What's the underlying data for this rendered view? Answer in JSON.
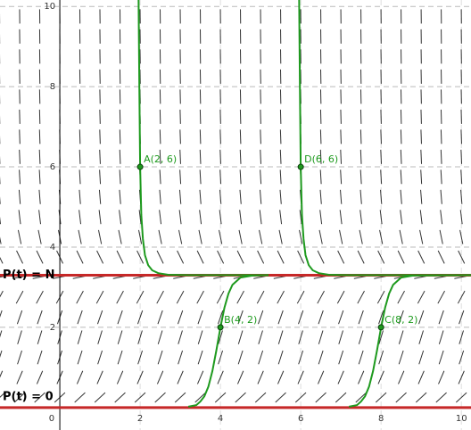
{
  "chart_data": {
    "type": "slope_field",
    "xlim": [
      -1.49,
      10.24
    ],
    "ylim": [
      -0.56,
      10.16
    ],
    "xticks": [
      0,
      2,
      4,
      6,
      8,
      10
    ],
    "yticks": [
      2,
      4,
      6,
      8,
      10
    ],
    "grid": true,
    "lines": [
      {
        "label": "P(t) = N",
        "y": 3.3,
        "color": "#c62828"
      },
      {
        "label": "P(t) = 0",
        "y": 0,
        "color": "#c62828"
      }
    ],
    "series": [
      {
        "color": "#1e9a1e",
        "x": [
          1.96,
          1.98,
          2,
          2.03,
          2.07,
          2.12,
          2.2,
          2.3,
          2.45,
          2.7,
          3.2,
          5.2
        ],
        "values": [
          10.3,
          8,
          6,
          4.8,
          4.2,
          3.8,
          3.55,
          3.42,
          3.35,
          3.31,
          3.3,
          3.3
        ]
      },
      {
        "color": "#1e9a1e",
        "x": [
          5.96,
          5.98,
          6,
          6.03,
          6.07,
          6.12,
          6.2,
          6.3,
          6.45,
          6.7,
          7.2,
          10.3
        ],
        "values": [
          10.3,
          8,
          6,
          4.8,
          4.2,
          3.8,
          3.55,
          3.42,
          3.35,
          3.31,
          3.3,
          3.3
        ]
      },
      {
        "color": "#1e9a1e",
        "x": [
          3.2,
          3.4,
          3.5,
          3.6,
          3.7,
          3.8,
          3.9,
          4,
          4.1,
          4.2,
          4.3,
          4.5,
          4.8,
          5.2
        ],
        "values": [
          0.02,
          0.06,
          0.15,
          0.28,
          0.52,
          0.91,
          1.43,
          2,
          2.49,
          2.84,
          3.06,
          3.24,
          3.29,
          3.3
        ]
      },
      {
        "color": "#1e9a1e",
        "x": [
          7.2,
          7.4,
          7.5,
          7.6,
          7.7,
          7.8,
          7.9,
          8,
          8.1,
          8.2,
          8.3,
          8.5,
          8.8,
          10.3
        ],
        "values": [
          0.02,
          0.06,
          0.15,
          0.28,
          0.52,
          0.91,
          1.43,
          2,
          2.49,
          2.84,
          3.06,
          3.24,
          3.29,
          3.3
        ]
      }
    ],
    "points": [
      {
        "label": "A(2, 6)",
        "x": 2,
        "y": 6
      },
      {
        "label": "D(6, 6)",
        "x": 6,
        "y": 6
      },
      {
        "label": "B(4, 2)",
        "x": 4,
        "y": 2
      },
      {
        "label": "C(8, 2)",
        "x": 8,
        "y": 2
      }
    ]
  }
}
